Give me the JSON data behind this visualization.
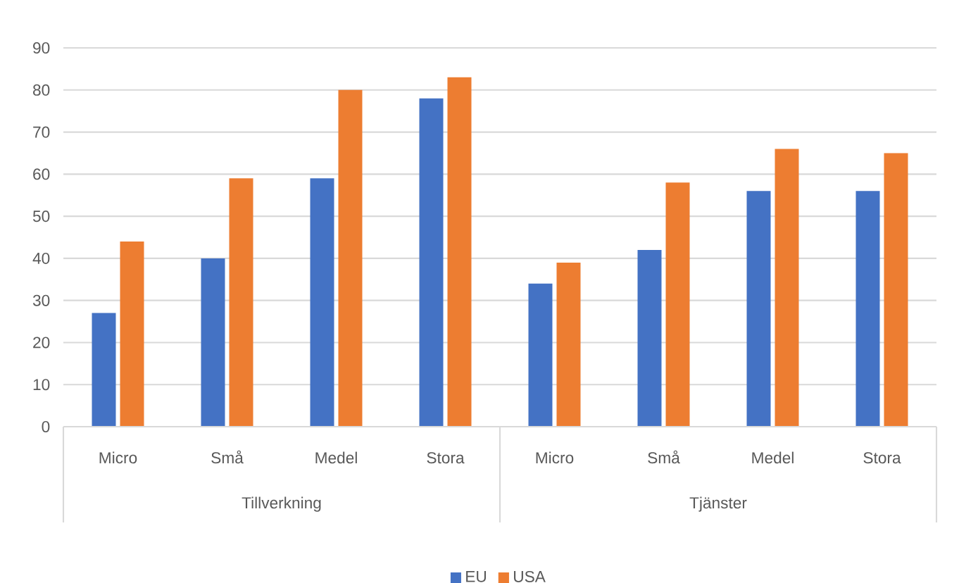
{
  "chart_data": {
    "type": "bar",
    "categories": [
      "Micro",
      "Små",
      "Medel",
      "Stora",
      "Micro",
      "Små",
      "Medel",
      "Stora"
    ],
    "annotations": [
      "Tillverkning",
      "Tjänster"
    ],
    "series": [
      {
        "name": "EU",
        "color": "#4472c4",
        "values": [
          27,
          40,
          59,
          78,
          34,
          42,
          56,
          56
        ]
      },
      {
        "name": "USA",
        "color": "#ed7d31",
        "values": [
          44,
          59,
          80,
          83,
          39,
          58,
          66,
          65
        ]
      }
    ],
    "ylim": [
      0,
      90
    ],
    "yticks": [
      0,
      10,
      20,
      30,
      40,
      50,
      60,
      70,
      80,
      90
    ],
    "grid": "y",
    "legend": "bottom"
  }
}
